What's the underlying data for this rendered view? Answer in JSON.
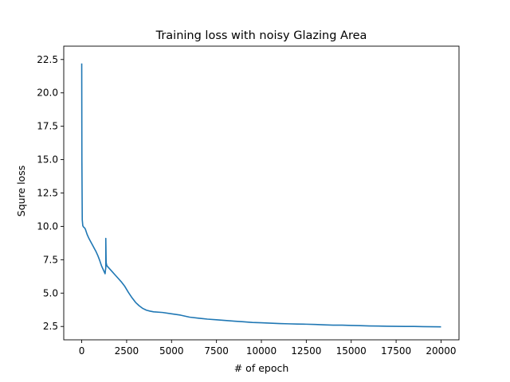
{
  "chart_data": {
    "type": "line",
    "title": "Training loss with noisy Glazing Area",
    "xlabel": "# of epoch",
    "ylabel": "Squre loss",
    "xlim": [
      -1000,
      21000
    ],
    "ylim": [
      1.5,
      23.5
    ],
    "xticks": [
      0,
      2500,
      5000,
      7500,
      10000,
      12500,
      15000,
      17500,
      20000
    ],
    "xtick_labels": [
      "0",
      "2500",
      "5000",
      "7500",
      "10000",
      "12500",
      "15000",
      "17500",
      "20000"
    ],
    "yticks": [
      2.5,
      5.0,
      7.5,
      10.0,
      12.5,
      15.0,
      17.5,
      20.0,
      22.5
    ],
    "ytick_labels": [
      "2.5",
      "5.0",
      "7.5",
      "10.0",
      "12.5",
      "15.0",
      "17.5",
      "20.0",
      "22.5"
    ],
    "grid": false,
    "legend": "none",
    "series": [
      {
        "color": "#1f77b4",
        "x": [
          0,
          10,
          30,
          60,
          100,
          150,
          200,
          300,
          400,
          500,
          600,
          700,
          800,
          900,
          1000,
          1100,
          1200,
          1300,
          1320,
          1340,
          1340,
          1360,
          1380,
          1400,
          1500,
          1600,
          1700,
          1800,
          1900,
          2000,
          2200,
          2400,
          2600,
          2800,
          3000,
          3200,
          3400,
          3600,
          3800,
          4000,
          4500,
          5000,
          5500,
          6000,
          6500,
          7000,
          7500,
          8000,
          8500,
          9000,
          9500,
          10000,
          10500,
          11000,
          11500,
          12000,
          12500,
          13000,
          13500,
          14000,
          14500,
          15000,
          15500,
          16000,
          16500,
          17000,
          17500,
          18000,
          18500,
          19000,
          19500,
          20000
        ],
        "y": [
          22.2,
          15.0,
          10.5,
          10.05,
          9.95,
          9.9,
          9.8,
          9.4,
          9.1,
          8.85,
          8.6,
          8.35,
          8.1,
          7.8,
          7.45,
          7.05,
          6.75,
          6.45,
          6.7,
          6.9,
          9.1,
          7.3,
          7.15,
          7.05,
          6.9,
          6.75,
          6.6,
          6.45,
          6.3,
          6.15,
          5.85,
          5.5,
          5.05,
          4.65,
          4.3,
          4.05,
          3.85,
          3.72,
          3.65,
          3.6,
          3.55,
          3.45,
          3.35,
          3.2,
          3.12,
          3.05,
          3.0,
          2.95,
          2.9,
          2.85,
          2.8,
          2.78,
          2.75,
          2.72,
          2.7,
          2.68,
          2.67,
          2.65,
          2.62,
          2.6,
          2.6,
          2.58,
          2.56,
          2.54,
          2.53,
          2.52,
          2.51,
          2.5,
          2.5,
          2.49,
          2.48,
          2.47
        ]
      }
    ]
  }
}
